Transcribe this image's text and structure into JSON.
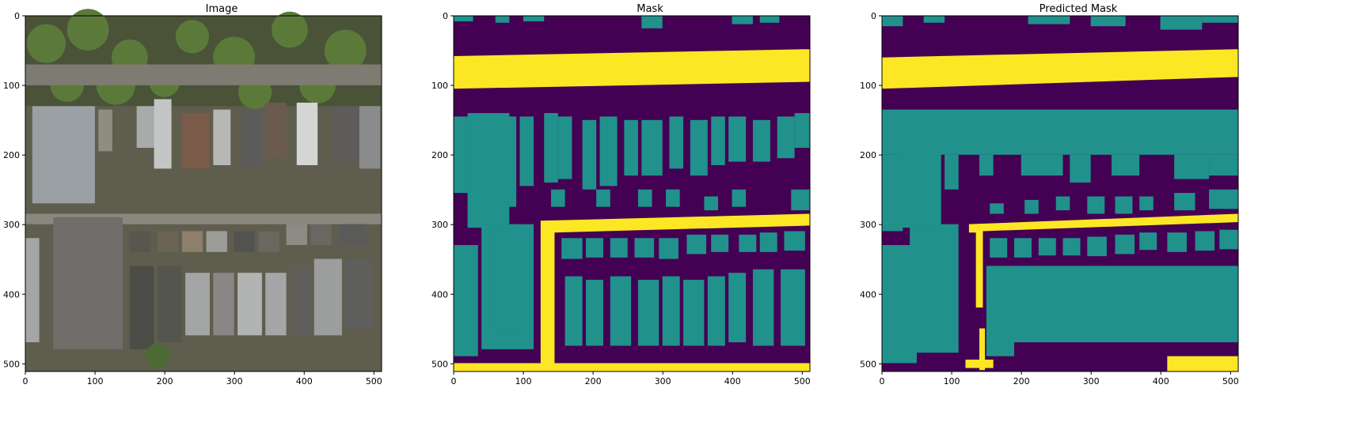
{
  "panels": [
    {
      "title": "Image",
      "kind": "satellite"
    },
    {
      "title": "Mask",
      "kind": "mask"
    },
    {
      "title": "Predicted Mask",
      "kind": "predicted"
    }
  ],
  "axis": {
    "xticks": [
      "0",
      "100",
      "200",
      "300",
      "400",
      "500"
    ],
    "yticks": [
      "0",
      "100",
      "200",
      "300",
      "400",
      "500"
    ],
    "range": [
      0,
      511
    ]
  },
  "colors": {
    "background_class": "#440154",
    "building_class": "#21918c",
    "road_class": "#fde725"
  }
}
